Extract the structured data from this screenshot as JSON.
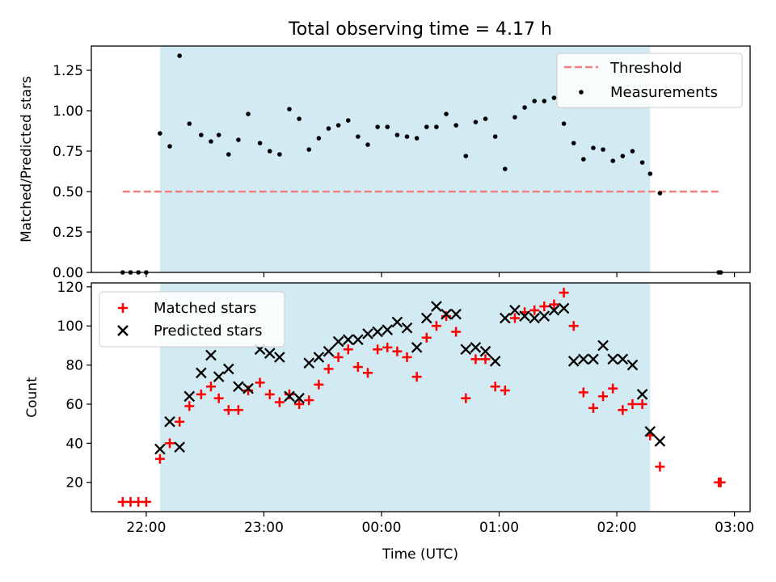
{
  "title": "Total observing time = 4.17 h",
  "colors": {
    "shade": "#add8e6",
    "threshold": "#f08080",
    "matched": "#ff0000",
    "predicted": "#000000",
    "measurement": "#000000"
  },
  "chart_data": [
    {
      "type": "scatter",
      "panel": "top",
      "title": "Total observing time = 4.17 h",
      "xlabel": "",
      "ylabel": "Matched/Predicted stars",
      "ylim": [
        0,
        1.4
      ],
      "yticks": [
        0.0,
        0.25,
        0.5,
        0.75,
        1.0,
        1.25
      ],
      "ytick_labels": [
        "0.00",
        "0.25",
        "0.50",
        "0.75",
        "1.00",
        "1.25"
      ],
      "xlim_minutes_after_2200": [
        -28,
        308
      ],
      "shaded_span": {
        "start": "22:07",
        "end": "02:17"
      },
      "threshold": {
        "name": "Threshold",
        "value": 0.5,
        "from": "21:48",
        "to": "02:53"
      },
      "legend": {
        "position": "top-right",
        "entries": [
          "Threshold",
          "Measurements"
        ]
      },
      "series": [
        {
          "name": "Measurements",
          "x": [
            "21:48",
            "21:52",
            "21:56",
            "22:00",
            "22:07",
            "22:12",
            "22:17",
            "22:22",
            "22:28",
            "22:33",
            "22:37",
            "22:42",
            "22:47",
            "22:52",
            "22:58",
            "23:03",
            "23:08",
            "23:13",
            "23:18",
            "23:23",
            "23:28",
            "23:33",
            "23:38",
            "23:43",
            "23:48",
            "23:53",
            "23:58",
            "00:03",
            "00:08",
            "00:13",
            "00:18",
            "00:23",
            "00:28",
            "00:33",
            "00:38",
            "00:43",
            "00:48",
            "00:53",
            "00:58",
            "01:03",
            "01:08",
            "01:13",
            "01:18",
            "01:23",
            "01:28",
            "01:33",
            "01:38",
            "01:43",
            "01:48",
            "01:53",
            "01:58",
            "02:03",
            "02:08",
            "02:13",
            "02:17",
            "02:22",
            "02:52",
            "02:53"
          ],
          "y": [
            0.0,
            0.0,
            0.0,
            0.0,
            0.86,
            0.78,
            1.34,
            0.92,
            0.85,
            0.81,
            0.85,
            0.73,
            0.82,
            0.98,
            0.8,
            0.75,
            0.73,
            1.01,
            0.95,
            0.76,
            0.83,
            0.89,
            0.91,
            0.94,
            0.84,
            0.79,
            0.9,
            0.9,
            0.85,
            0.84,
            0.83,
            0.9,
            0.9,
            0.98,
            0.91,
            0.72,
            0.93,
            0.95,
            0.84,
            0.64,
            0.96,
            1.02,
            1.06,
            1.06,
            1.08,
            0.92,
            0.8,
            0.7,
            0.77,
            0.76,
            0.69,
            0.72,
            0.75,
            0.68,
            0.61,
            0.49,
            0.0,
            0.0
          ]
        }
      ]
    },
    {
      "type": "scatter",
      "panel": "bottom",
      "xlabel": "Time (UTC)",
      "ylabel": "Count",
      "ylim": [
        5,
        122
      ],
      "yticks": [
        20,
        40,
        60,
        80,
        100,
        120
      ],
      "ytick_labels": [
        "20",
        "40",
        "60",
        "80",
        "100",
        "120"
      ],
      "xticks": [
        "22:00",
        "23:00",
        "00:00",
        "01:00",
        "02:00",
        "03:00"
      ],
      "xtick_minutes_after_2200": [
        0,
        60,
        120,
        180,
        240,
        300
      ],
      "xlim_minutes_after_2200": [
        -28,
        308
      ],
      "shaded_span": {
        "start": "22:07",
        "end": "02:17"
      },
      "legend": {
        "position": "top-left",
        "entries": [
          "Matched stars",
          "Predicted stars"
        ]
      },
      "series": [
        {
          "name": "Matched stars",
          "marker": "+",
          "x": [
            "21:48",
            "21:52",
            "21:56",
            "22:00",
            "22:07",
            "22:12",
            "22:17",
            "22:22",
            "22:28",
            "22:33",
            "22:37",
            "22:42",
            "22:47",
            "22:52",
            "22:58",
            "23:03",
            "23:08",
            "23:13",
            "23:18",
            "23:23",
            "23:28",
            "23:33",
            "23:38",
            "23:43",
            "23:48",
            "23:53",
            "23:58",
            "00:03",
            "00:08",
            "00:13",
            "00:18",
            "00:23",
            "00:28",
            "00:33",
            "00:38",
            "00:43",
            "00:48",
            "00:53",
            "00:58",
            "01:03",
            "01:08",
            "01:13",
            "01:18",
            "01:23",
            "01:28",
            "01:33",
            "01:38",
            "01:43",
            "01:48",
            "01:53",
            "01:58",
            "02:03",
            "02:08",
            "02:13",
            "02:17",
            "02:22",
            "02:52",
            "02:53"
          ],
          "y": [
            10,
            10,
            10,
            10,
            32,
            40,
            51,
            59,
            65,
            69,
            63,
            57,
            57,
            67,
            71,
            65,
            61,
            65,
            60,
            62,
            70,
            78,
            84,
            88,
            79,
            76,
            88,
            89,
            87,
            84,
            74,
            94,
            100,
            105,
            97,
            63,
            83,
            83,
            69,
            67,
            104,
            107,
            108,
            110,
            111,
            117,
            100,
            66,
            58,
            64,
            68,
            57,
            60,
            60,
            44,
            28,
            20,
            20
          ]
        },
        {
          "name": "Predicted stars",
          "marker": "x",
          "x": [
            "22:07",
            "22:12",
            "22:17",
            "22:22",
            "22:28",
            "22:33",
            "22:37",
            "22:42",
            "22:47",
            "22:52",
            "22:58",
            "23:03",
            "23:08",
            "23:13",
            "23:18",
            "23:23",
            "23:28",
            "23:33",
            "23:38",
            "23:43",
            "23:48",
            "23:53",
            "23:58",
            "00:03",
            "00:08",
            "00:13",
            "00:18",
            "00:23",
            "00:28",
            "00:33",
            "00:38",
            "00:43",
            "00:48",
            "00:53",
            "00:58",
            "01:03",
            "01:08",
            "01:13",
            "01:18",
            "01:23",
            "01:28",
            "01:33",
            "01:38",
            "01:43",
            "01:48",
            "01:53",
            "01:58",
            "02:03",
            "02:08",
            "02:13",
            "02:17",
            "02:22"
          ],
          "y": [
            37,
            51,
            38,
            64,
            76,
            85,
            74,
            78,
            69,
            68,
            88,
            86,
            84,
            64,
            63,
            81,
            84,
            87,
            92,
            93,
            93,
            96,
            97,
            98,
            102,
            99,
            89,
            104,
            110,
            106,
            106,
            88,
            89,
            87,
            82,
            104,
            108,
            105,
            104,
            105,
            108,
            109,
            82,
            83,
            83,
            90,
            83,
            83,
            80,
            65,
            46,
            41
          ]
        }
      ]
    }
  ]
}
